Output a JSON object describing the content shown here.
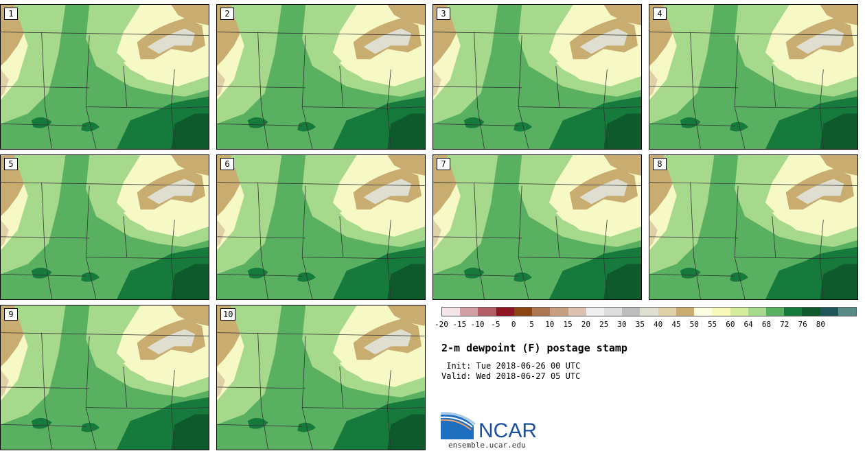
{
  "stamps": [
    {
      "label": "1"
    },
    {
      "label": "2"
    },
    {
      "label": "3"
    },
    {
      "label": "4"
    },
    {
      "label": "5"
    },
    {
      "label": "6"
    },
    {
      "label": "7"
    },
    {
      "label": "8"
    },
    {
      "label": "9"
    },
    {
      "label": "10"
    }
  ],
  "legend": {
    "colors": [
      "#f3e4e7",
      "#d29fa5",
      "#b35e67",
      "#8e1522",
      "#8a4513",
      "#ad7754",
      "#c7a083",
      "#ddc2b2",
      "#eeeeee",
      "#dddddd",
      "#bdbdbd",
      "#dedfd0",
      "#dfd0a7",
      "#c9ac70",
      "#fdfde2",
      "#f7f9b9",
      "#d4ec9c",
      "#a7d98c",
      "#59b060",
      "#177a3d",
      "#0f5a2c",
      "#1f5659",
      "#588a86"
    ],
    "ticks": [
      "-20",
      "-15",
      "-10",
      "-5",
      "0",
      "5",
      "10",
      "15",
      "20",
      "25",
      "30",
      "35",
      "40",
      "45",
      "50",
      "55",
      "60",
      "64",
      "68",
      "72",
      "76",
      "80"
    ]
  },
  "title": "2-m dewpoint (F) postage stamp",
  "init": " Init: Tue 2018-06-26 00 UTC",
  "valid": "Valid: Wed 2018-06-27 05 UTC",
  "logo": {
    "text": "NCAR",
    "url": "ensemble.ucar.edu"
  },
  "map_colors": {
    "dry": "#c9ac70",
    "light_tan": "#dfd0a7",
    "lake": "#dedfd0",
    "pale": "#f6f9c6",
    "light_green": "#a7d98c",
    "green": "#59b060",
    "dark_green": "#177a3d",
    "darker_green": "#0f5a2c",
    "line": "#333333"
  }
}
